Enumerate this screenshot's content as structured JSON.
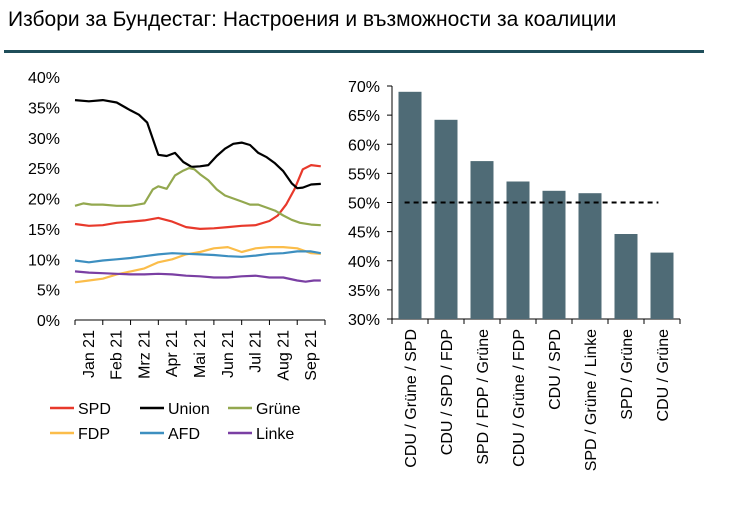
{
  "title": "Избори за Бундестаг: Настроения и възможности за коалиции",
  "colors": {
    "rule": "#1f4e5a",
    "bar": "#4f6b76",
    "axis": "#000000"
  },
  "chart_data": [
    {
      "type": "line",
      "title": "",
      "ylim": [
        0,
        40
      ],
      "yticks": [
        "0%",
        "5%",
        "10%",
        "15%",
        "20%",
        "25%",
        "30%",
        "35%",
        "40%"
      ],
      "x_labels": [
        "Jan 21",
        "Feb 21",
        "Mrz 21",
        "Apr 21",
        "Mai 21",
        "Jun 21",
        "Jul 21",
        "Aug 21",
        "Sep 21"
      ],
      "x_range": [
        0,
        9
      ],
      "legend_position": "bottom",
      "series": [
        {
          "name": "SPD",
          "color": "#e8392b",
          "x": [
            0,
            0.5,
            1,
            1.5,
            2,
            2.5,
            3,
            3.5,
            4,
            4.5,
            5,
            5.5,
            6,
            6.5,
            7,
            7.3,
            7.6,
            7.9,
            8.2,
            8.5,
            8.85
          ],
          "y": [
            15.8,
            15.5,
            15.6,
            16.0,
            16.2,
            16.4,
            16.8,
            16.2,
            15.3,
            15.0,
            15.1,
            15.3,
            15.5,
            15.6,
            16.3,
            17.2,
            19.0,
            21.5,
            24.8,
            25.5,
            25.3
          ]
        },
        {
          "name": "Union",
          "color": "#000000",
          "x": [
            0,
            0.5,
            1,
            1.5,
            2,
            2.3,
            2.6,
            3,
            3.3,
            3.6,
            3.9,
            4.2,
            4.5,
            4.8,
            5.1,
            5.4,
            5.7,
            6,
            6.3,
            6.6,
            6.9,
            7.2,
            7.5,
            7.8,
            8,
            8.2,
            8.5,
            8.85
          ],
          "y": [
            36.2,
            36.0,
            36.2,
            35.8,
            34.5,
            33.8,
            32.5,
            27.2,
            27.0,
            27.5,
            26.0,
            25.2,
            25.3,
            25.5,
            27.0,
            28.2,
            29.0,
            29.2,
            28.8,
            27.5,
            26.8,
            25.8,
            24.5,
            22.5,
            21.7,
            21.8,
            22.3,
            22.4
          ]
        },
        {
          "name": "Grüne",
          "color": "#93a84f",
          "x": [
            0,
            0.3,
            0.6,
            1,
            1.5,
            2,
            2.5,
            2.8,
            3,
            3.3,
            3.6,
            3.9,
            4.1,
            4.3,
            4.5,
            4.8,
            5.1,
            5.4,
            5.7,
            6,
            6.3,
            6.6,
            6.9,
            7.2,
            7.5,
            7.8,
            8.1,
            8.5,
            8.85
          ],
          "y": [
            18.8,
            19.2,
            19.0,
            19.0,
            18.8,
            18.8,
            19.2,
            21.5,
            22.0,
            21.6,
            23.8,
            24.6,
            25.0,
            24.8,
            24.0,
            23.0,
            21.5,
            20.5,
            20.0,
            19.5,
            19.0,
            19.0,
            18.5,
            18.0,
            17.2,
            16.5,
            16.0,
            15.7,
            15.6
          ]
        },
        {
          "name": "FDP",
          "color": "#fbbd4a",
          "x": [
            0,
            0.5,
            1,
            1.5,
            2,
            2.5,
            3,
            3.5,
            4,
            4.5,
            5,
            5.5,
            6,
            6.5,
            7,
            7.5,
            8,
            8.5,
            8.85
          ],
          "y": [
            6.2,
            6.5,
            6.8,
            7.5,
            8.0,
            8.5,
            9.5,
            10.0,
            10.8,
            11.2,
            11.8,
            12.0,
            11.2,
            11.8,
            12.0,
            12.0,
            11.8,
            11.0,
            10.9
          ]
        },
        {
          "name": "AFD",
          "color": "#3d8fc0",
          "x": [
            0,
            0.5,
            1,
            1.5,
            2,
            2.5,
            3,
            3.5,
            4,
            4.5,
            5,
            5.5,
            6,
            6.5,
            7,
            7.5,
            8,
            8.5,
            8.85
          ],
          "y": [
            9.8,
            9.5,
            9.8,
            10.0,
            10.2,
            10.5,
            10.8,
            11.0,
            10.9,
            10.8,
            10.7,
            10.5,
            10.4,
            10.6,
            10.9,
            11.0,
            11.3,
            11.3,
            11.0
          ]
        },
        {
          "name": "Linke",
          "color": "#7a3fa3",
          "x": [
            0,
            0.5,
            1,
            1.5,
            2,
            2.5,
            3,
            3.5,
            4,
            4.5,
            5,
            5.5,
            6,
            6.5,
            7,
            7.5,
            8,
            8.3,
            8.6,
            8.85
          ],
          "y": [
            8.0,
            7.8,
            7.7,
            7.6,
            7.5,
            7.5,
            7.6,
            7.5,
            7.3,
            7.2,
            7.0,
            7.0,
            7.2,
            7.3,
            7.0,
            7.0,
            6.5,
            6.3,
            6.5,
            6.5
          ]
        }
      ]
    },
    {
      "type": "bar",
      "title": "",
      "ylim": [
        30,
        70
      ],
      "yticks": [
        "30%",
        "35%",
        "40%",
        "45%",
        "50%",
        "55%",
        "60%",
        "65%",
        "70%"
      ],
      "categories": [
        "CDU / Grüne / SPD",
        "CDU / SPD / FDP",
        "SPD / FDP / Grüne",
        "CDU / Grüne / FDP",
        "CDU / SPD",
        "SPD / Grüne / Linke",
        "SPD / Grüne",
        "CDU / Grüne"
      ],
      "values": [
        69.0,
        64.2,
        57.1,
        53.6,
        52.0,
        51.6,
        44.6,
        41.4
      ],
      "reference_line": 50
    }
  ]
}
